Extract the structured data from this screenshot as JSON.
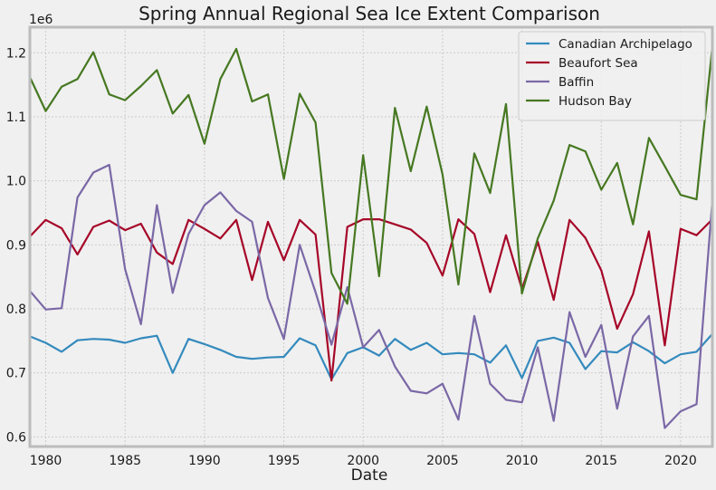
{
  "chart_data": {
    "type": "line",
    "title": "Spring Annual Regional Sea Ice Extent Comparison",
    "xlabel": "Date",
    "ylabel": "",
    "y_offset_label": "1e6",
    "xlim": [
      1979,
      2022
    ],
    "ylim": [
      0.585,
      1.24
    ],
    "x_ticks": [
      1980,
      1985,
      1990,
      1995,
      2000,
      2005,
      2010,
      2015,
      2020
    ],
    "y_ticks": [
      0.6,
      0.7,
      0.8,
      0.9,
      1.0,
      1.1,
      1.2
    ],
    "y_tick_labels": [
      "0.6",
      "0.7",
      "0.8",
      "0.9",
      "1.0",
      "1.1",
      "1.2"
    ],
    "grid": true,
    "legend_position": "top-right",
    "x": [
      1979,
      1980,
      1981,
      1982,
      1983,
      1984,
      1985,
      1986,
      1987,
      1988,
      1989,
      1990,
      1991,
      1992,
      1993,
      1994,
      1995,
      1996,
      1997,
      1998,
      1999,
      2000,
      2001,
      2002,
      2003,
      2004,
      2005,
      2006,
      2007,
      2008,
      2009,
      2010,
      2011,
      2012,
      2013,
      2014,
      2015,
      2016,
      2017,
      2018,
      2019,
      2020,
      2021,
      2022
    ],
    "series": [
      {
        "name": "Canadian Archipelago",
        "color": "#348abd",
        "values": [
          0.757,
          0.747,
          0.733,
          0.751,
          0.753,
          0.752,
          0.747,
          0.754,
          0.758,
          0.7,
          0.753,
          0.745,
          0.736,
          0.725,
          0.722,
          0.724,
          0.725,
          0.754,
          0.743,
          0.69,
          0.731,
          0.74,
          0.727,
          0.753,
          0.736,
          0.747,
          0.729,
          0.731,
          0.729,
          0.716,
          0.743,
          0.692,
          0.75,
          0.755,
          0.747,
          0.706,
          0.734,
          0.732,
          0.748,
          0.734,
          0.715,
          0.729,
          0.733,
          0.761
        ]
      },
      {
        "name": "Beaufort Sea",
        "color": "#a60628",
        "values": [
          0.913,
          0.939,
          0.926,
          0.885,
          0.928,
          0.938,
          0.923,
          0.933,
          0.888,
          0.87,
          0.939,
          0.925,
          0.91,
          0.939,
          0.845,
          0.936,
          0.876,
          0.939,
          0.916,
          0.688,
          0.928,
          0.94,
          0.94,
          0.932,
          0.924,
          0.903,
          0.852,
          0.94,
          0.917,
          0.826,
          0.915,
          0.831,
          0.905,
          0.814,
          0.939,
          0.911,
          0.86,
          0.769,
          0.823,
          0.921,
          0.743,
          0.925,
          0.915,
          0.94
        ]
      },
      {
        "name": "Baffin",
        "color": "#7a68a6",
        "values": [
          0.828,
          0.799,
          0.801,
          0.974,
          1.013,
          1.025,
          0.862,
          0.776,
          0.962,
          0.825,
          0.917,
          0.962,
          0.982,
          0.953,
          0.936,
          0.817,
          0.753,
          0.9,
          0.826,
          0.744,
          0.834,
          0.74,
          0.767,
          0.71,
          0.672,
          0.668,
          0.683,
          0.627,
          0.789,
          0.683,
          0.658,
          0.654,
          0.74,
          0.625,
          0.795,
          0.725,
          0.775,
          0.644,
          0.757,
          0.789,
          0.614,
          0.64,
          0.651,
          0.97
        ]
      },
      {
        "name": "Hudson Bay",
        "color": "#467821",
        "values": [
          1.162,
          1.109,
          1.147,
          1.159,
          1.201,
          1.135,
          1.126,
          1.148,
          1.173,
          1.105,
          1.134,
          1.058,
          1.159,
          1.206,
          1.124,
          1.135,
          1.003,
          1.136,
          1.091,
          0.856,
          0.808,
          1.04,
          0.851,
          1.114,
          1.015,
          1.116,
          1.01,
          0.838,
          1.043,
          0.981,
          1.12,
          0.824,
          0.91,
          0.969,
          1.056,
          1.046,
          0.986,
          1.028,
          0.932,
          1.067,
          1.023,
          0.978,
          0.971,
          1.21
        ]
      }
    ]
  }
}
